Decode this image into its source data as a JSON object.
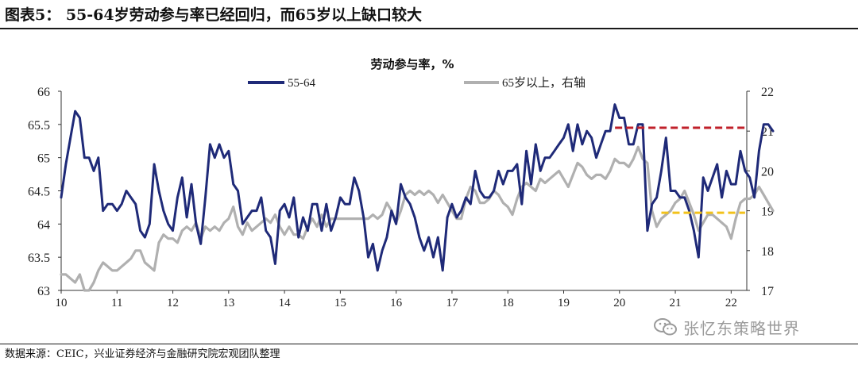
{
  "figure_title": "图表5：  55-64岁劳动参与率已经回归，而65岁以上缺口较大",
  "source_note": "数据来源：CEIC，兴业证券经济与金融研究院宏观团队整理",
  "watermark_text": "张忆东策略世界",
  "chart_data": {
    "type": "line",
    "title": "劳动参与率，%",
    "xlabel": "",
    "ylabel": "",
    "x_ticks": [
      "10",
      "11",
      "12",
      "13",
      "14",
      "15",
      "16",
      "17",
      "18",
      "19",
      "20",
      "21",
      "22"
    ],
    "x_range": [
      2010.0,
      2022.28
    ],
    "ylim_left": [
      63,
      66
    ],
    "y_ticks_left": [
      "63",
      "63.5",
      "64",
      "64.5",
      "65",
      "65.5",
      "66"
    ],
    "ylim_right": [
      17,
      22
    ],
    "y_ticks_right": [
      "17",
      "18",
      "19",
      "20",
      "21",
      "22"
    ],
    "grid": false,
    "legend_position": "top",
    "series": [
      {
        "name": "55-64",
        "axis": "left",
        "color": "#1f2a78",
        "start": 2010.0,
        "step": 0.08333,
        "values": [
          64.4,
          64.9,
          65.3,
          65.7,
          65.6,
          65.0,
          65.0,
          64.8,
          65.0,
          64.2,
          64.3,
          64.3,
          64.2,
          64.3,
          64.5,
          64.4,
          64.3,
          63.9,
          63.8,
          64.0,
          64.9,
          64.5,
          64.2,
          64.0,
          63.9,
          64.4,
          64.7,
          64.1,
          64.6,
          64.0,
          63.7,
          64.4,
          65.2,
          65.0,
          65.2,
          65.0,
          65.1,
          64.6,
          64.5,
          64.0,
          64.1,
          64.2,
          64.2,
          64.4,
          63.9,
          63.8,
          63.4,
          64.2,
          64.3,
          64.1,
          64.4,
          63.8,
          64.1,
          63.9,
          64.3,
          64.3,
          63.9,
          64.3,
          63.9,
          64.1,
          64.4,
          64.3,
          64.3,
          64.7,
          64.5,
          64.1,
          63.5,
          63.7,
          63.3,
          63.6,
          63.8,
          64.2,
          64.0,
          64.6,
          64.4,
          64.3,
          64.1,
          63.8,
          63.6,
          63.8,
          63.5,
          63.8,
          63.3,
          64.1,
          64.3,
          64.1,
          64.2,
          64.4,
          64.3,
          64.8,
          64.5,
          64.4,
          64.4,
          64.5,
          64.8,
          64.6,
          64.8,
          64.8,
          64.9,
          64.3,
          65.1,
          64.6,
          65.2,
          64.8,
          65.0,
          65.0,
          65.1,
          65.2,
          65.3,
          65.5,
          65.1,
          65.5,
          65.2,
          65.4,
          65.3,
          65.0,
          65.2,
          65.4,
          65.4,
          65.8,
          65.6,
          65.6,
          65.2,
          65.2,
          65.5,
          65.5,
          63.9,
          64.3,
          64.4,
          64.8,
          65.3,
          64.5,
          64.5,
          64.4,
          64.4,
          64.2,
          63.9,
          63.5,
          64.7,
          64.5,
          64.7,
          64.9,
          64.4,
          64.8,
          64.6,
          64.6,
          65.1,
          64.8,
          64.7,
          64.4,
          65.1,
          65.5,
          65.5,
          65.4
        ]
      },
      {
        "name": "65岁以上，右轴",
        "axis": "right",
        "color": "#b0b0b0",
        "start": 2010.0,
        "step": 0.08333,
        "values": [
          17.4,
          17.4,
          17.3,
          17.2,
          17.4,
          17.0,
          17.0,
          17.2,
          17.5,
          17.7,
          17.6,
          17.5,
          17.5,
          17.6,
          17.7,
          17.8,
          18.0,
          18.0,
          17.7,
          17.6,
          17.5,
          18.2,
          18.4,
          18.3,
          18.3,
          18.2,
          18.5,
          18.6,
          18.5,
          18.7,
          18.3,
          18.6,
          18.5,
          18.6,
          18.5,
          18.7,
          18.8,
          19.1,
          18.6,
          18.4,
          18.7,
          18.5,
          18.6,
          18.7,
          18.8,
          18.7,
          18.9,
          18.6,
          18.4,
          18.6,
          18.4,
          18.4,
          18.3,
          18.6,
          18.8,
          18.6,
          18.9,
          18.6,
          18.8,
          18.8,
          18.8,
          18.8,
          18.8,
          18.8,
          18.8,
          18.8,
          18.8,
          18.9,
          18.8,
          18.9,
          19.2,
          19.0,
          18.7,
          19.0,
          19.4,
          19.5,
          19.4,
          19.5,
          19.4,
          19.5,
          19.4,
          19.2,
          19.4,
          19.2,
          19.0,
          18.8,
          18.8,
          19.3,
          19.6,
          19.5,
          19.2,
          19.2,
          19.3,
          19.5,
          19.4,
          19.2,
          19.1,
          18.9,
          19.3,
          19.6,
          19.7,
          19.6,
          19.5,
          19.8,
          19.7,
          19.8,
          19.9,
          20.0,
          19.8,
          19.6,
          19.9,
          20.2,
          20.1,
          19.9,
          19.8,
          19.9,
          19.9,
          19.8,
          20.0,
          20.3,
          20.2,
          20.2,
          20.1,
          20.3,
          20.6,
          20.3,
          20.2,
          19.0,
          18.6,
          18.8,
          18.9,
          19.0,
          19.2,
          19.3,
          19.5,
          19.2,
          18.9,
          18.5,
          18.7,
          18.9,
          18.9,
          18.8,
          18.7,
          18.6,
          18.3,
          18.8,
          19.2,
          19.3,
          19.3,
          19.4,
          19.6,
          19.4,
          19.2,
          19.0
        ]
      }
    ],
    "reference_lines": [
      {
        "axis": "left",
        "value": 65.45,
        "x_from": 2019.92,
        "x_to": 2022.25,
        "color": "#c0202a",
        "style": "dashed"
      },
      {
        "axis": "right",
        "value": 18.95,
        "x_from": 2020.75,
        "x_to": 2022.25,
        "color": "#f2c21b",
        "style": "dashed"
      }
    ]
  }
}
